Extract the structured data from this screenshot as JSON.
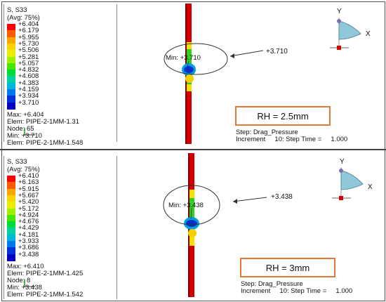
{
  "panels": [
    {
      "legend": {
        "title1": "S, S33",
        "title2": "(Avg: 75%)",
        "values": [
          "+6.404",
          "+6.179",
          "+5.955",
          "+5.730",
          "+5.506",
          "+5.281",
          "+5.057",
          "+4.832",
          "+4.608",
          "+4.383",
          "+4.159",
          "+3.934",
          "+3.710"
        ],
        "max_line": "Max: +6.404",
        "max_elem": "Elem: PIPE-2-1MM-1.31",
        "node": "Node: 65",
        "min_line": "Min: +3.710",
        "min_elem": "Elem: PIPE-2-1MM-1.548"
      },
      "min_label": "Min: +3.710",
      "callout": "+3.710",
      "rh": "RH = 2.5mm",
      "step1": "Step: Drag_Pressure",
      "step2": "Increment     10: Step Time =     1.000",
      "axis_y": "Y",
      "axis_x": "X"
    },
    {
      "legend": {
        "title1": "S, S33",
        "title2": "(Avg: 75%)",
        "values": [
          "+6.410",
          "+6.163",
          "+5.915",
          "+5.667",
          "+5.420",
          "+5.172",
          "+4.924",
          "+4.676",
          "+4.429",
          "+4.181",
          "+3.933",
          "+3.686",
          "+3.438"
        ],
        "max_line": "Max: +6.410",
        "max_elem": "Elem: PIPE-2-1MM-1.425",
        "node": "Node: 8",
        "min_line": "Min: +3.438",
        "min_elem": "Elem: PIPE-2-1MM-1.542"
      },
      "min_label": "Min: +3.438",
      "callout": "+3.438",
      "rh": "RH = 3mm",
      "step1": "Step: Drag_Pressure",
      "step2": "Increment     10: Step Time =     1.000",
      "axis_y": "Y",
      "axis_x": "X"
    }
  ],
  "colors": {
    "scale": [
      "#ff0000",
      "#ff5a00",
      "#ffa500",
      "#ffd200",
      "#e6f000",
      "#a0f000",
      "#46e600",
      "#00dc3c",
      "#00d2a0",
      "#00b4dc",
      "#0078f0",
      "#0032dc",
      "#0000c8"
    ],
    "accent_box": "#e07a3a",
    "pipe": "#d40000"
  }
}
